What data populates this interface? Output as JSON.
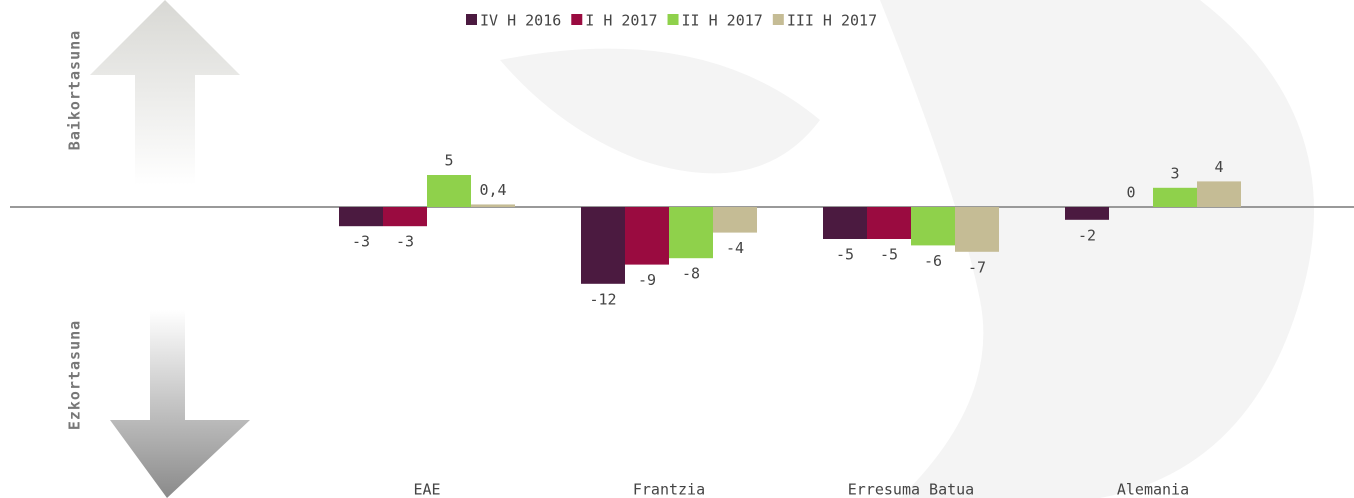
{
  "chart_data": {
    "type": "bar",
    "axis_labels": {
      "positive": "Baikortasuna",
      "negative": "Ezkortasuna"
    },
    "categories": [
      "EAE",
      "Frantzia",
      "Erresuma Batua",
      "Alemania"
    ],
    "series": [
      {
        "name": "IV H 2016",
        "color": "#4b1a40",
        "values": [
          -3,
          -12,
          -5,
          -2
        ]
      },
      {
        "name": "I H 2017",
        "color": "#9a0b40",
        "values": [
          -3,
          -9,
          -5,
          0
        ]
      },
      {
        "name": "II H 2017",
        "color": "#8fd14b",
        "values": [
          5,
          -8,
          -6,
          3
        ]
      },
      {
        "name": "III H 2017",
        "color": "#c5bc95",
        "values": [
          0.4,
          -4,
          -7,
          4
        ],
        "value_labels": [
          "0,4",
          "-4",
          "-7",
          "4"
        ]
      }
    ],
    "legend": "top"
  }
}
